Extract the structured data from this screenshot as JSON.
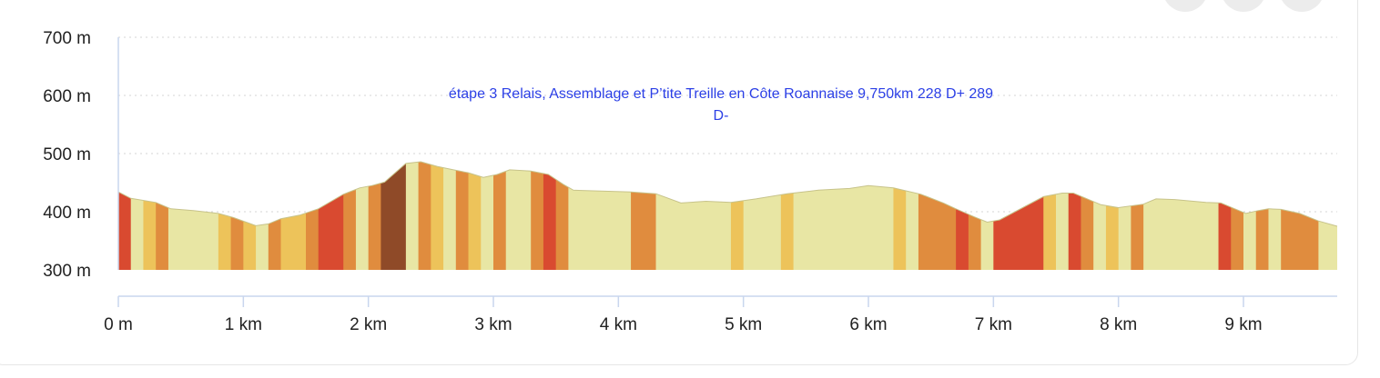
{
  "window": {
    "buttons": [
      {
        "name": "info-button",
        "icon": "info-icon",
        "glyph": "ℹ"
      },
      {
        "name": "download-button",
        "icon": "download-icon",
        "glyph": "⤓"
      },
      {
        "name": "close-button",
        "icon": "close-icon",
        "glyph": "✕"
      }
    ]
  },
  "chart_data": {
    "type": "area",
    "title_line1": "étape 3 Relais, Assemblage et P’tite Treille en Côte Roannaise 9,750km 228 D+  289",
    "title_line2": "D-",
    "xlabel": "",
    "ylabel": "",
    "ylim": [
      300,
      700
    ],
    "xlim": [
      0,
      9.75
    ],
    "y_ticks": [
      {
        "value": 300,
        "label": "300 m"
      },
      {
        "value": 400,
        "label": "400 m"
      },
      {
        "value": 500,
        "label": "500 m"
      },
      {
        "value": 600,
        "label": "600 m"
      },
      {
        "value": 700,
        "label": "700 m"
      }
    ],
    "x_ticks": [
      {
        "value": 0,
        "label": "0 m"
      },
      {
        "value": 1,
        "label": "1 km"
      },
      {
        "value": 2,
        "label": "2 km"
      },
      {
        "value": 3,
        "label": "3 km"
      },
      {
        "value": 4,
        "label": "4 km"
      },
      {
        "value": 5,
        "label": "5 km"
      },
      {
        "value": 6,
        "label": "6 km"
      },
      {
        "value": 7,
        "label": "7 km"
      },
      {
        "value": 8,
        "label": "8 km"
      },
      {
        "value": 9,
        "label": "9 km"
      }
    ],
    "grid": true,
    "colors": {
      "flat": "#e8e6a4",
      "light": "#edc35a",
      "medium": "#e08c3e",
      "steep": "#d94a30",
      "very_steep": "#8f4a28",
      "grid": "#d4d4d4",
      "axis": "#c9d6ee",
      "title": "#2b3fe6"
    },
    "profile": [
      {
        "x": 0.0,
        "y": 434
      },
      {
        "x": 0.1,
        "y": 423
      },
      {
        "x": 0.3,
        "y": 416
      },
      {
        "x": 0.42,
        "y": 405
      },
      {
        "x": 0.6,
        "y": 402
      },
      {
        "x": 0.8,
        "y": 397
      },
      {
        "x": 0.92,
        "y": 390
      },
      {
        "x": 1.1,
        "y": 376
      },
      {
        "x": 1.2,
        "y": 379
      },
      {
        "x": 1.3,
        "y": 388
      },
      {
        "x": 1.45,
        "y": 394
      },
      {
        "x": 1.6,
        "y": 405
      },
      {
        "x": 1.8,
        "y": 430
      },
      {
        "x": 1.93,
        "y": 441
      },
      {
        "x": 2.03,
        "y": 445
      },
      {
        "x": 2.13,
        "y": 451
      },
      {
        "x": 2.3,
        "y": 483
      },
      {
        "x": 2.42,
        "y": 486
      },
      {
        "x": 2.55,
        "y": 478
      },
      {
        "x": 2.68,
        "y": 472
      },
      {
        "x": 2.8,
        "y": 467
      },
      {
        "x": 2.92,
        "y": 459
      },
      {
        "x": 3.03,
        "y": 464
      },
      {
        "x": 3.13,
        "y": 472
      },
      {
        "x": 3.3,
        "y": 470
      },
      {
        "x": 3.44,
        "y": 464
      },
      {
        "x": 3.56,
        "y": 447
      },
      {
        "x": 3.64,
        "y": 437
      },
      {
        "x": 3.95,
        "y": 435
      },
      {
        "x": 4.1,
        "y": 434
      },
      {
        "x": 4.3,
        "y": 431
      },
      {
        "x": 4.5,
        "y": 415
      },
      {
        "x": 4.7,
        "y": 418
      },
      {
        "x": 4.9,
        "y": 416
      },
      {
        "x": 5.1,
        "y": 422
      },
      {
        "x": 5.35,
        "y": 431
      },
      {
        "x": 5.6,
        "y": 437
      },
      {
        "x": 5.85,
        "y": 440
      },
      {
        "x": 6.0,
        "y": 445
      },
      {
        "x": 6.2,
        "y": 441
      },
      {
        "x": 6.3,
        "y": 436
      },
      {
        "x": 6.42,
        "y": 430
      },
      {
        "x": 6.6,
        "y": 415
      },
      {
        "x": 6.7,
        "y": 405
      },
      {
        "x": 6.85,
        "y": 391
      },
      {
        "x": 6.95,
        "y": 382
      },
      {
        "x": 7.05,
        "y": 386
      },
      {
        "x": 7.4,
        "y": 426
      },
      {
        "x": 7.55,
        "y": 432
      },
      {
        "x": 7.64,
        "y": 432
      },
      {
        "x": 7.74,
        "y": 423
      },
      {
        "x": 7.86,
        "y": 412
      },
      {
        "x": 8.0,
        "y": 407
      },
      {
        "x": 8.2,
        "y": 413
      },
      {
        "x": 8.3,
        "y": 422
      },
      {
        "x": 8.45,
        "y": 421
      },
      {
        "x": 8.7,
        "y": 416
      },
      {
        "x": 8.82,
        "y": 415
      },
      {
        "x": 8.92,
        "y": 406
      },
      {
        "x": 9.02,
        "y": 397
      },
      {
        "x": 9.12,
        "y": 402
      },
      {
        "x": 9.2,
        "y": 405
      },
      {
        "x": 9.3,
        "y": 404
      },
      {
        "x": 9.45,
        "y": 397
      },
      {
        "x": 9.6,
        "y": 384
      },
      {
        "x": 9.75,
        "y": 375
      }
    ],
    "segments": [
      {
        "x0": 0.0,
        "x1": 0.1,
        "level": "steep"
      },
      {
        "x0": 0.1,
        "x1": 0.2,
        "level": "flat"
      },
      {
        "x0": 0.2,
        "x1": 0.3,
        "level": "light"
      },
      {
        "x0": 0.3,
        "x1": 0.4,
        "level": "medium"
      },
      {
        "x0": 0.4,
        "x1": 0.8,
        "level": "flat"
      },
      {
        "x0": 0.8,
        "x1": 0.9,
        "level": "light"
      },
      {
        "x0": 0.9,
        "x1": 1.0,
        "level": "medium"
      },
      {
        "x0": 1.0,
        "x1": 1.1,
        "level": "light"
      },
      {
        "x0": 1.1,
        "x1": 1.2,
        "level": "flat"
      },
      {
        "x0": 1.2,
        "x1": 1.3,
        "level": "medium"
      },
      {
        "x0": 1.3,
        "x1": 1.5,
        "level": "light"
      },
      {
        "x0": 1.5,
        "x1": 1.6,
        "level": "medium"
      },
      {
        "x0": 1.6,
        "x1": 1.8,
        "level": "steep"
      },
      {
        "x0": 1.8,
        "x1": 1.9,
        "level": "medium"
      },
      {
        "x0": 1.9,
        "x1": 2.0,
        "level": "flat"
      },
      {
        "x0": 2.0,
        "x1": 2.1,
        "level": "medium"
      },
      {
        "x0": 2.1,
        "x1": 2.3,
        "level": "very_steep"
      },
      {
        "x0": 2.3,
        "x1": 2.4,
        "level": "flat"
      },
      {
        "x0": 2.4,
        "x1": 2.5,
        "level": "medium"
      },
      {
        "x0": 2.5,
        "x1": 2.6,
        "level": "light"
      },
      {
        "x0": 2.6,
        "x1": 2.7,
        "level": "flat"
      },
      {
        "x0": 2.7,
        "x1": 2.8,
        "level": "medium"
      },
      {
        "x0": 2.8,
        "x1": 2.9,
        "level": "light"
      },
      {
        "x0": 2.9,
        "x1": 3.0,
        "level": "flat"
      },
      {
        "x0": 3.0,
        "x1": 3.1,
        "level": "medium"
      },
      {
        "x0": 3.1,
        "x1": 3.3,
        "level": "flat"
      },
      {
        "x0": 3.3,
        "x1": 3.4,
        "level": "medium"
      },
      {
        "x0": 3.4,
        "x1": 3.5,
        "level": "steep"
      },
      {
        "x0": 3.5,
        "x1": 3.6,
        "level": "medium"
      },
      {
        "x0": 3.6,
        "x1": 4.1,
        "level": "flat"
      },
      {
        "x0": 4.1,
        "x1": 4.3,
        "level": "medium"
      },
      {
        "x0": 4.3,
        "x1": 4.9,
        "level": "flat"
      },
      {
        "x0": 4.9,
        "x1": 5.0,
        "level": "light"
      },
      {
        "x0": 5.0,
        "x1": 5.3,
        "level": "flat"
      },
      {
        "x0": 5.3,
        "x1": 5.4,
        "level": "light"
      },
      {
        "x0": 5.4,
        "x1": 6.2,
        "level": "flat"
      },
      {
        "x0": 6.2,
        "x1": 6.3,
        "level": "light"
      },
      {
        "x0": 6.3,
        "x1": 6.4,
        "level": "flat"
      },
      {
        "x0": 6.4,
        "x1": 6.7,
        "level": "medium"
      },
      {
        "x0": 6.7,
        "x1": 6.8,
        "level": "steep"
      },
      {
        "x0": 6.8,
        "x1": 6.9,
        "level": "medium"
      },
      {
        "x0": 6.9,
        "x1": 7.0,
        "level": "flat"
      },
      {
        "x0": 7.0,
        "x1": 7.4,
        "level": "steep"
      },
      {
        "x0": 7.4,
        "x1": 7.5,
        "level": "light"
      },
      {
        "x0": 7.5,
        "x1": 7.6,
        "level": "flat"
      },
      {
        "x0": 7.6,
        "x1": 7.7,
        "level": "steep"
      },
      {
        "x0": 7.7,
        "x1": 7.8,
        "level": "medium"
      },
      {
        "x0": 7.8,
        "x1": 7.9,
        "level": "flat"
      },
      {
        "x0": 7.9,
        "x1": 8.0,
        "level": "light"
      },
      {
        "x0": 8.0,
        "x1": 8.1,
        "level": "flat"
      },
      {
        "x0": 8.1,
        "x1": 8.2,
        "level": "medium"
      },
      {
        "x0": 8.2,
        "x1": 8.8,
        "level": "flat"
      },
      {
        "x0": 8.8,
        "x1": 8.9,
        "level": "steep"
      },
      {
        "x0": 8.9,
        "x1": 9.0,
        "level": "medium"
      },
      {
        "x0": 9.0,
        "x1": 9.1,
        "level": "flat"
      },
      {
        "x0": 9.1,
        "x1": 9.2,
        "level": "medium"
      },
      {
        "x0": 9.2,
        "x1": 9.3,
        "level": "flat"
      },
      {
        "x0": 9.3,
        "x1": 9.6,
        "level": "medium"
      },
      {
        "x0": 9.6,
        "x1": 9.75,
        "level": "flat"
      }
    ]
  }
}
